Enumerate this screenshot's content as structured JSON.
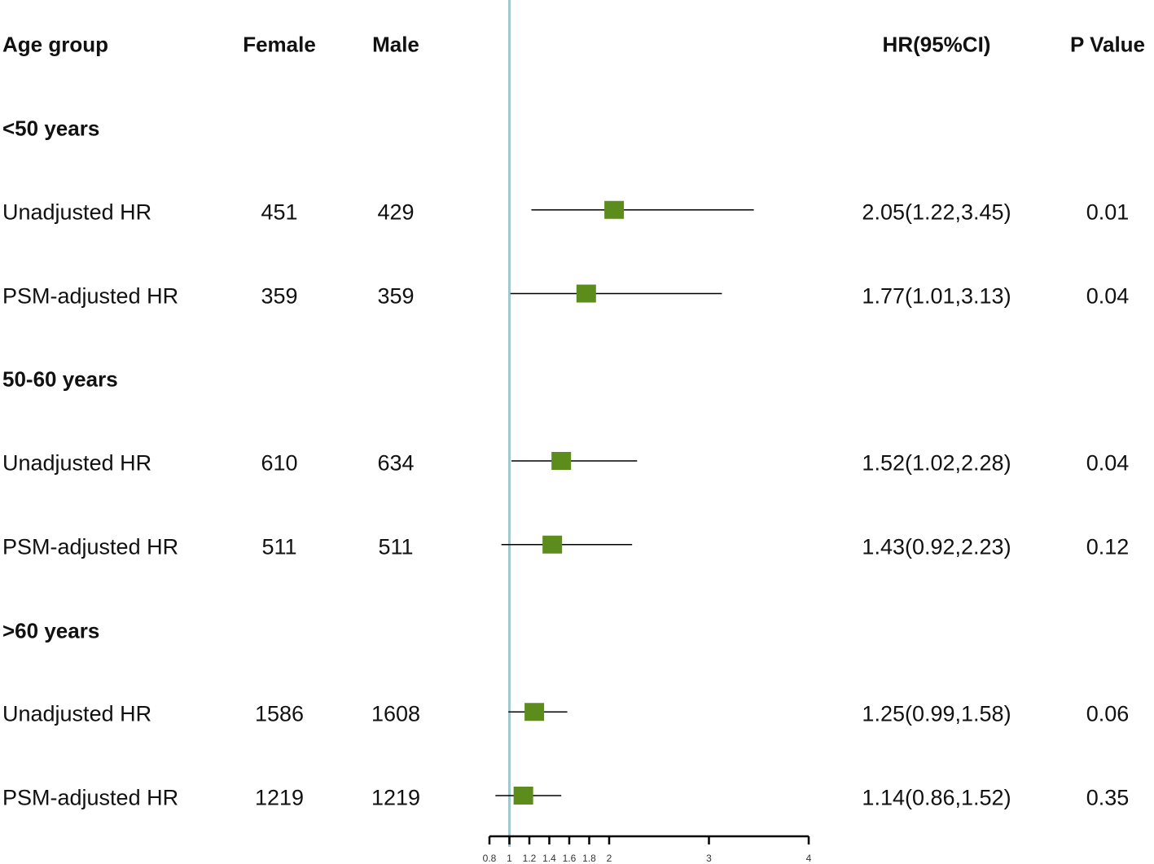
{
  "chart_data": {
    "type": "forest",
    "headers": {
      "group": "Age group",
      "female": "Female",
      "male": "Male",
      "hr": "HR(95%CI)",
      "p": "P Value"
    },
    "reference_value": 1,
    "xlim": [
      0.8,
      4
    ],
    "x_ticks": [
      "0.8",
      "1",
      "1.2",
      "1.4",
      "1.6",
      "1.8",
      "2",
      "3",
      "4"
    ],
    "colors": {
      "box": "#5b8c1c",
      "reference_line": "#9fc9cc",
      "line": "#000000"
    },
    "rows": [
      {
        "kind": "group",
        "label": "<50 years"
      },
      {
        "kind": "estimate",
        "label": "Unadjusted HR",
        "female": "451",
        "male": "429",
        "hr": 2.05,
        "lo": 1.22,
        "hi": 3.45,
        "hr_text": "2.05(1.22,3.45)",
        "p": "0.01"
      },
      {
        "kind": "estimate",
        "label": "PSM-adjusted HR",
        "female": "359",
        "male": "359",
        "hr": 1.77,
        "lo": 1.01,
        "hi": 3.13,
        "hr_text": "1.77(1.01,3.13)",
        "p": "0.04"
      },
      {
        "kind": "group",
        "label": "50-60 years"
      },
      {
        "kind": "estimate",
        "label": "Unadjusted HR",
        "female": "610",
        "male": "634",
        "hr": 1.52,
        "lo": 1.02,
        "hi": 2.28,
        "hr_text": "1.52(1.02,2.28)",
        "p": "0.04"
      },
      {
        "kind": "estimate",
        "label": "PSM-adjusted HR",
        "female": "511",
        "male": "511",
        "hr": 1.43,
        "lo": 0.92,
        "hi": 2.23,
        "hr_text": "1.43(0.92,2.23)",
        "p": "0.12"
      },
      {
        "kind": "group",
        "label": ">60 years"
      },
      {
        "kind": "estimate",
        "label": "Unadjusted HR",
        "female": "1586",
        "male": "1608",
        "hr": 1.25,
        "lo": 0.99,
        "hi": 1.58,
        "hr_text": "1.25(0.99,1.58)",
        "p": "0.06"
      },
      {
        "kind": "estimate",
        "label": "PSM-adjusted HR",
        "female": "1219",
        "male": "1219",
        "hr": 1.14,
        "lo": 0.86,
        "hi": 1.52,
        "hr_text": "1.14(0.86,1.52)",
        "p": "0.35"
      }
    ]
  }
}
